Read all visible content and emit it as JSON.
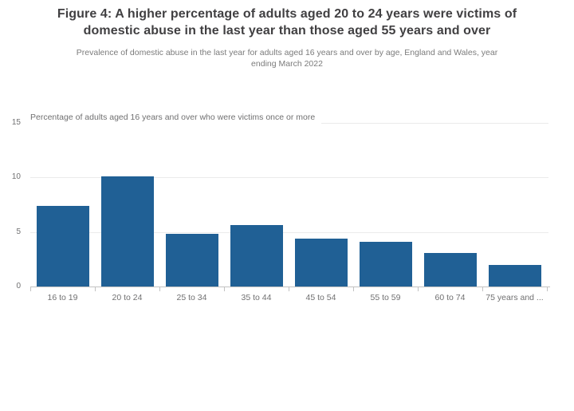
{
  "header": {
    "title_lines": [
      "Figure 4: A higher percentage of adults aged 20 to 24 years were victims of",
      "domestic abuse in the last year than those aged 55 years and over"
    ],
    "subtitle_lines": [
      "Prevalence of domestic abuse in the last year for adults aged 16 years and over by age, England and Wales, year",
      "ending March 2022"
    ]
  },
  "chart_data": {
    "type": "bar",
    "title": "Figure 4: A higher percentage of adults aged 20 to 24 years were victims of domestic abuse in the last year than those aged 55 years and over",
    "subtitle": "Prevalence of domestic abuse in the last year for adults aged 16 years and over by age, England and Wales, year ending March 2022",
    "ylabel": "Percentage of adults aged 16 years and over who were victims once or more",
    "xlabel": "",
    "categories": [
      "16 to 19",
      "20 to 24",
      "25 to 34",
      "35 to 44",
      "45 to 54",
      "55 to 59",
      "60 to 74",
      "75 years and ..."
    ],
    "values": [
      7.4,
      10.1,
      4.8,
      5.6,
      4.4,
      4.1,
      3.1,
      2.0
    ],
    "ylim": [
      0,
      15
    ],
    "yticks": [
      0,
      5,
      10,
      15
    ],
    "grid": "horizontal",
    "legend": "none",
    "bar_color": "#206095"
  },
  "colors": {
    "bar": "#206095",
    "title_text": "#414042",
    "muted_text": "#707071",
    "gridline": "#ebebeb",
    "axis": "#c2c2c2",
    "background": "#ffffff"
  }
}
